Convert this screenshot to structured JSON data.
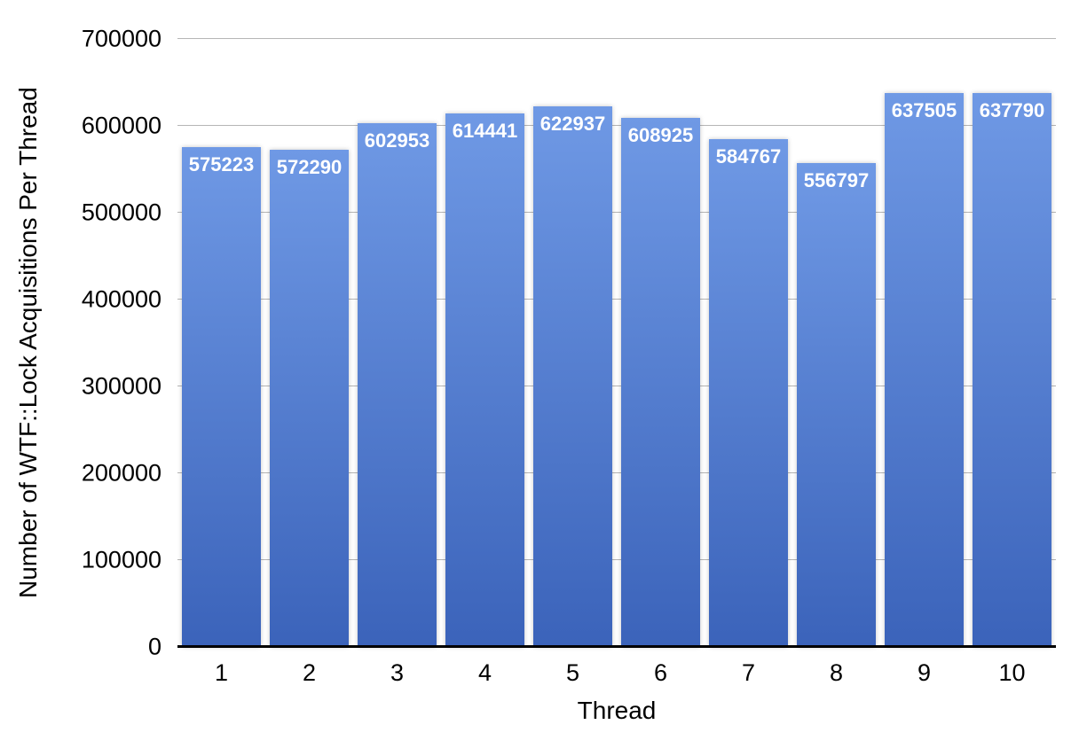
{
  "chart_data": {
    "type": "bar",
    "title": "",
    "xlabel": "Thread",
    "ylabel": "Number of WTF::Lock Acquisitions Per Thread",
    "categories": [
      "1",
      "2",
      "3",
      "4",
      "5",
      "6",
      "7",
      "8",
      "9",
      "10"
    ],
    "values": [
      575223,
      572290,
      602953,
      614441,
      622937,
      608925,
      584767,
      556797,
      637505,
      637790
    ],
    "value_labels": [
      "575223",
      "572290",
      "602953",
      "614441",
      "622937",
      "608925",
      "584767",
      "556797",
      "637505",
      "637790"
    ],
    "ylim": [
      0,
      700000
    ],
    "yticks": [
      0,
      100000,
      200000,
      300000,
      400000,
      500000,
      600000,
      700000
    ],
    "ytick_labels": [
      "0",
      "100000",
      "200000",
      "300000",
      "400000",
      "500000",
      "600000",
      "700000"
    ],
    "grid": true,
    "legend": "none",
    "colors": {
      "bar_gradient_top": "#6f99e5",
      "bar_gradient_bottom": "#3b63ba",
      "value_label": "#ffffff",
      "gridline": "#b6b6b6",
      "axis_line": "#000000",
      "text": "#000000",
      "background": "#ffffff"
    }
  }
}
